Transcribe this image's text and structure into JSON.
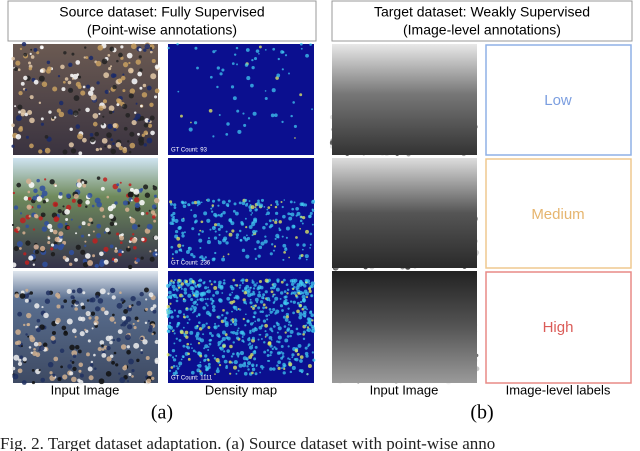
{
  "panels": [
    {
      "header": [
        "Source dataset: Fully Supervised",
        "(Point-wise annotations)"
      ],
      "gt_counts": [
        "GT Count: 93",
        "GT Count: 236",
        "GT Count: 1111"
      ],
      "column_labels": [
        "Input Image",
        "Density map"
      ],
      "label": "(a)"
    },
    {
      "header": [
        "Target dataset: Weakly Supervised",
        "(Image-level annotations)"
      ],
      "levels": [
        "Low",
        "Medium",
        "High"
      ],
      "column_labels": [
        "Input Image",
        "Image-level labels"
      ],
      "label": "(b)"
    }
  ],
  "caption": "Fig. 2.   Target dataset adaptation. (a) Source dataset with point-wise anno"
}
